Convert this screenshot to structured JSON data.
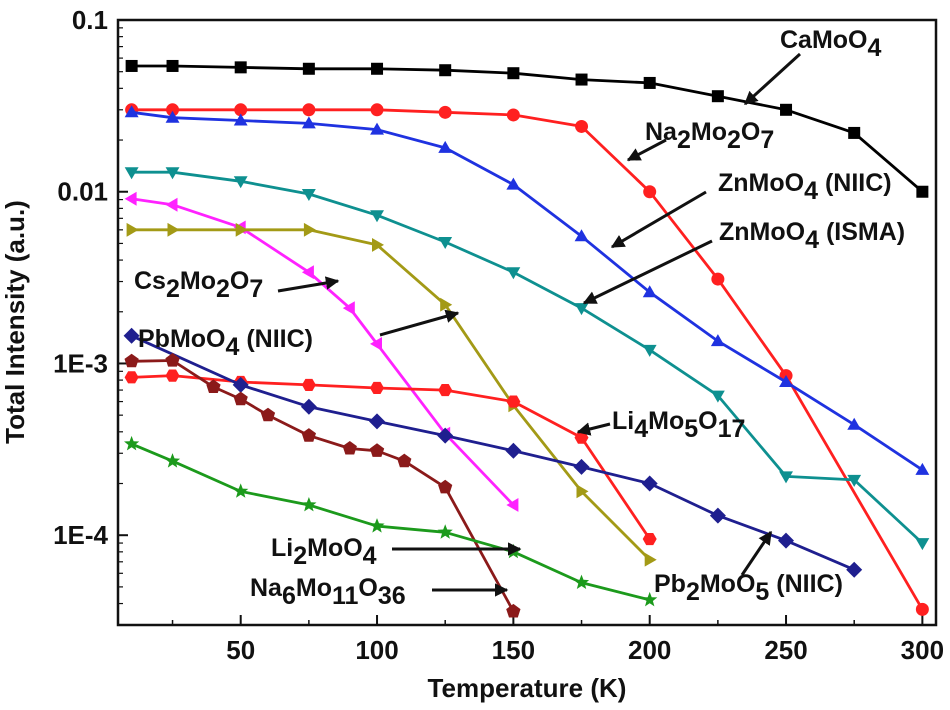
{
  "chart_data": {
    "type": "line",
    "title": "",
    "xlabel": "Temperature (K)",
    "ylabel": "Total Intensity (a.u.)",
    "xlim": [
      5,
      305
    ],
    "ylim": [
      3e-05,
      0.1
    ],
    "yscale": "log",
    "x_ticks": [
      50,
      100,
      150,
      200,
      250,
      300
    ],
    "x_tick_labels": [
      "50",
      "100",
      "150",
      "200",
      "250",
      "300"
    ],
    "y_ticks": [
      0.0001,
      0.001,
      0.01,
      0.1
    ],
    "y_tick_labels": [
      "1E-4",
      "1E-3",
      "0.01",
      "0.1"
    ],
    "series": [
      {
        "name": "CaMoO4",
        "color": "#000000",
        "marker": "square",
        "x": [
          10,
          25,
          50,
          75,
          100,
          125,
          150,
          175,
          200,
          225,
          250,
          275,
          300
        ],
        "y": [
          0.054,
          0.054,
          0.053,
          0.052,
          0.052,
          0.051,
          0.049,
          0.045,
          0.043,
          0.036,
          0.03,
          0.022,
          0.01
        ]
      },
      {
        "name": "Na2Mo2O7",
        "color": "#ff2020",
        "marker": "circle",
        "x": [
          10,
          25,
          50,
          75,
          100,
          125,
          150,
          175,
          200,
          225,
          250,
          300
        ],
        "y": [
          0.03,
          0.03,
          0.03,
          0.03,
          0.03,
          0.029,
          0.028,
          0.024,
          0.01,
          0.0031,
          0.00085,
          3.7e-05
        ]
      },
      {
        "name": "ZnMoO4 (NIIC)",
        "color": "#1f32e0",
        "marker": "triangle-up",
        "x": [
          10,
          25,
          50,
          75,
          100,
          125,
          150,
          175,
          200,
          225,
          250,
          275,
          300
        ],
        "y": [
          0.029,
          0.027,
          0.026,
          0.025,
          0.023,
          0.018,
          0.011,
          0.0055,
          0.0026,
          0.00135,
          0.00078,
          0.00044,
          0.00024
        ]
      },
      {
        "name": "ZnMoO4 (ISMA)",
        "color": "#0e9090",
        "marker": "triangle-down",
        "x": [
          10,
          25,
          50,
          75,
          100,
          125,
          150,
          175,
          200,
          225,
          250,
          275,
          300
        ],
        "y": [
          0.013,
          0.013,
          0.0115,
          0.0097,
          0.0073,
          0.0051,
          0.0034,
          0.0021,
          0.0012,
          0.00065,
          0.00022,
          0.00021,
          9e-05
        ]
      },
      {
        "name": "Cs2Mo2O7",
        "color": "#ff22ff",
        "marker": "triangle-left",
        "x": [
          10,
          25,
          50,
          75,
          90,
          100,
          125,
          150
        ],
        "y": [
          0.0091,
          0.0084,
          0.0062,
          0.0034,
          0.0021,
          0.0013,
          0.00039,
          0.00015
        ]
      },
      {
        "name": "PbMoO4 (NIIC)",
        "color": "#a39a16",
        "marker": "triangle-right",
        "x": [
          10,
          25,
          50,
          75,
          100,
          125,
          150,
          175,
          200
        ],
        "y": [
          0.006,
          0.006,
          0.006,
          0.006,
          0.0049,
          0.0022,
          0.00057,
          0.00018,
          7.2e-05
        ]
      },
      {
        "name": "Li4Mo5O17",
        "color": "#ff2020",
        "marker": "hexagon",
        "x": [
          10,
          25,
          50,
          75,
          100,
          125,
          150,
          175,
          200
        ],
        "y": [
          0.00083,
          0.00085,
          0.00078,
          0.00075,
          0.00072,
          0.0007,
          0.0006,
          0.00037,
          9.5e-05
        ]
      },
      {
        "name": "Pb2MoO5 (NIIC)",
        "color": "#1f1f8f",
        "marker": "diamond",
        "x": [
          10,
          50,
          75,
          100,
          125,
          150,
          175,
          200,
          225,
          250,
          275
        ],
        "y": [
          0.00145,
          0.00075,
          0.00056,
          0.00046,
          0.00038,
          0.00031,
          0.00025,
          0.0002,
          0.00013,
          9.3e-05,
          6.3e-05
        ]
      },
      {
        "name": "Na6Mo11O36",
        "color": "#8b1a1a",
        "marker": "pentagon",
        "x": [
          10,
          25,
          40,
          50,
          60,
          75,
          90,
          100,
          110,
          125,
          150
        ],
        "y": [
          0.00103,
          0.00104,
          0.00073,
          0.00062,
          0.0005,
          0.00038,
          0.00032,
          0.00031,
          0.00027,
          0.00019,
          3.6e-05
        ]
      },
      {
        "name": "Li2MoO4",
        "color": "#1c9a1c",
        "marker": "star",
        "x": [
          10,
          25,
          50,
          75,
          100,
          125,
          150,
          175,
          200
        ],
        "y": [
          0.00034,
          0.00027,
          0.00018,
          0.00015,
          0.000113,
          0.000104,
          8e-05,
          5.3e-05,
          4.2e-05
        ]
      }
    ],
    "annotations": [
      {
        "id": "camo",
        "parts": [
          [
            "CaMoO",
            0
          ],
          [
            "4",
            1
          ]
        ],
        "points_to": "CaMoO4"
      },
      {
        "id": "na2",
        "parts": [
          [
            "Na",
            0
          ],
          [
            "2",
            1
          ],
          [
            "Mo",
            0
          ],
          [
            "2",
            1
          ],
          [
            "O",
            0
          ],
          [
            "7",
            1
          ]
        ],
        "points_to": "Na2Mo2O7"
      },
      {
        "id": "znniic",
        "parts": [
          [
            "ZnMoO",
            0
          ],
          [
            "4",
            1
          ],
          [
            " (NIIC)",
            0
          ]
        ],
        "points_to": "ZnMoO4 (NIIC)"
      },
      {
        "id": "znisma",
        "parts": [
          [
            "ZnMoO",
            0
          ],
          [
            "4",
            1
          ],
          [
            " (ISMA)",
            0
          ]
        ],
        "points_to": "ZnMoO4 (ISMA)"
      },
      {
        "id": "cs",
        "parts": [
          [
            "Cs",
            0
          ],
          [
            "2",
            1
          ],
          [
            "Mo",
            0
          ],
          [
            "2",
            1
          ],
          [
            "O",
            0
          ],
          [
            "7",
            1
          ]
        ],
        "points_to": "Cs2Mo2O7"
      },
      {
        "id": "pbniic",
        "parts": [
          [
            "PbMoO",
            0
          ],
          [
            "4",
            1
          ],
          [
            " (NIIC)",
            0
          ]
        ],
        "points_to": "PbMoO4 (NIIC)"
      },
      {
        "id": "li4",
        "parts": [
          [
            "Li",
            0
          ],
          [
            "4",
            1
          ],
          [
            "Mo",
            0
          ],
          [
            "5",
            1
          ],
          [
            "O",
            0
          ],
          [
            "17",
            1
          ]
        ],
        "points_to": "Li4Mo5O17"
      },
      {
        "id": "li2",
        "parts": [
          [
            "Li",
            0
          ],
          [
            "2",
            1
          ],
          [
            "MoO",
            0
          ],
          [
            "4",
            1
          ]
        ],
        "points_to": "Li2MoO4"
      },
      {
        "id": "na6",
        "parts": [
          [
            "Na",
            0
          ],
          [
            "6",
            1
          ],
          [
            "Mo",
            0
          ],
          [
            "11",
            1
          ],
          [
            "O",
            0
          ],
          [
            "36",
            1
          ]
        ],
        "points_to": "Na6Mo11O36"
      },
      {
        "id": "pb2",
        "parts": [
          [
            "Pb",
            0
          ],
          [
            "2",
            1
          ],
          [
            "MoO",
            0
          ],
          [
            "5",
            1
          ],
          [
            " (NIIC)",
            0
          ]
        ],
        "points_to": "Pb2MoO5 (NIIC)"
      }
    ]
  }
}
